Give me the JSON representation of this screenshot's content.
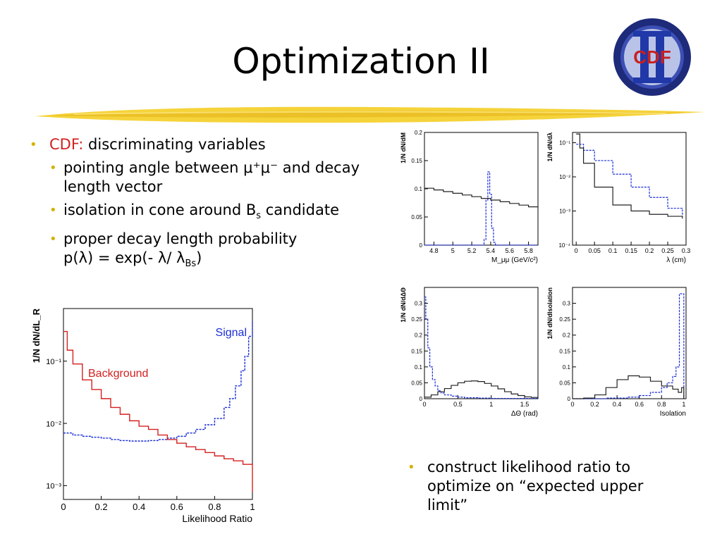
{
  "slide": {
    "title": "Optimization II",
    "logo_text": "CDF",
    "bullet1_prefix": "CDF:",
    "bullet1_text": "discriminating variables",
    "sub1_a": "pointing angle between",
    "sub1_b": "μ⁺μ⁻",
    "sub1_c": "and decay length vector",
    "sub2_a": "isolation in cone around B",
    "sub2_sub": "s",
    "sub2_b": "candidate",
    "sub3_a": "proper decay length probability",
    "sub3_b": "p(λ) = exp(- λ/ λ",
    "sub3_sub": "Bs",
    "sub3_c": ")",
    "bullet2_text": "construct likelihood ratio to optimize on “expected upper limit”"
  },
  "colors": {
    "signal": "#1A2ED8",
    "background": "#D42020",
    "background_panels": "#222222",
    "bullet": "#D4B200",
    "highlight": "#D42020"
  },
  "chart_data": [
    {
      "id": "mass",
      "type": "line",
      "ylabel": "1/N dN/dM",
      "xlabel": "M_μμ  (GeV/c²)",
      "xlim": [
        4.7,
        5.9
      ],
      "ylim": [
        0,
        0.2
      ],
      "ylog": false,
      "xticks": [
        4.8,
        5,
        5.2,
        5.4,
        5.6,
        5.8
      ],
      "xticklabels": [
        "4.8",
        "5",
        "5.2",
        "5.4",
        "5.6",
        "5.8"
      ],
      "yticks": [
        0,
        0.05,
        0.1,
        0.15,
        0.2
      ],
      "yticklabels": [
        "0",
        "0.05",
        "0.1",
        "0.15",
        "0.2"
      ],
      "series": [
        {
          "role": "signal",
          "x": [
            4.7,
            5.3,
            5.33,
            5.35,
            5.37,
            5.39,
            5.41,
            5.43,
            5.45,
            5.9
          ],
          "y": [
            0,
            0,
            0.01,
            0.08,
            0.13,
            0.09,
            0.03,
            0.005,
            0,
            0
          ]
        },
        {
          "role": "background",
          "x": [
            4.7,
            4.8,
            4.9,
            5.0,
            5.1,
            5.2,
            5.3,
            5.4,
            5.5,
            5.6,
            5.7,
            5.8,
            5.9
          ],
          "y": [
            0.101,
            0.098,
            0.095,
            0.092,
            0.089,
            0.086,
            0.083,
            0.08,
            0.077,
            0.074,
            0.071,
            0.068,
            0.065
          ]
        }
      ]
    },
    {
      "id": "lambda",
      "type": "line",
      "ylabel": "1/N dN/dλ",
      "xlabel": "λ (cm)",
      "xlim": [
        -0.01,
        0.3
      ],
      "ylim": [
        0.0001,
        0.2
      ],
      "ylog": true,
      "xticks": [
        0,
        0.05,
        0.1,
        0.15,
        0.2,
        0.25,
        0.3
      ],
      "xticklabels": [
        "0",
        "0.05",
        "0.1",
        "0.15",
        "0.2",
        "0.25",
        "0.3"
      ],
      "yticks": [
        0.0001,
        0.001,
        0.01,
        0.1
      ],
      "yticklabels": [
        "10⁻⁴",
        "10⁻³",
        "10⁻²",
        "10⁻¹"
      ],
      "series": [
        {
          "role": "signal",
          "x": [
            0,
            0.02,
            0.05,
            0.1,
            0.15,
            0.2,
            0.25,
            0.29
          ],
          "y": [
            0.09,
            0.06,
            0.03,
            0.012,
            0.005,
            0.0025,
            0.0012,
            0.0007
          ]
        },
        {
          "role": "background",
          "x": [
            0,
            0.01,
            0.02,
            0.05,
            0.1,
            0.15,
            0.2,
            0.25,
            0.29
          ],
          "y": [
            0.18,
            0.07,
            0.025,
            0.005,
            0.0015,
            0.001,
            0.0008,
            0.0007,
            0.0006
          ]
        }
      ]
    },
    {
      "id": "angle",
      "type": "line",
      "ylabel": "1/N dN/dΔΘ",
      "xlabel": "ΔΘ  (rad)",
      "xlim": [
        0,
        1.7
      ],
      "ylim": [
        0,
        0.35
      ],
      "ylog": false,
      "xticks": [
        0,
        0.5,
        1,
        1.5
      ],
      "xticklabels": [
        "0",
        "0.5",
        "1",
        "1.5"
      ],
      "yticks": [
        0,
        0.05,
        0.1,
        0.15,
        0.2,
        0.25,
        0.3
      ],
      "yticklabels": [
        "0",
        "0.05",
        "0.1",
        "0.15",
        "0.2",
        "0.25",
        "0.3"
      ],
      "series": [
        {
          "role": "signal",
          "x": [
            0,
            0.02,
            0.05,
            0.08,
            0.12,
            0.16,
            0.2,
            0.25,
            0.3,
            0.4,
            0.5,
            0.6,
            0.8,
            1.0,
            1.7
          ],
          "y": [
            0.32,
            0.25,
            0.16,
            0.1,
            0.06,
            0.04,
            0.025,
            0.018,
            0.012,
            0.008,
            0.005,
            0.003,
            0.002,
            0.001,
            0
          ]
        },
        {
          "role": "background",
          "x": [
            0,
            0.1,
            0.2,
            0.3,
            0.4,
            0.5,
            0.6,
            0.7,
            0.8,
            0.9,
            1.0,
            1.1,
            1.2,
            1.3,
            1.4,
            1.5,
            1.6,
            1.7
          ],
          "y": [
            0.005,
            0.012,
            0.022,
            0.032,
            0.042,
            0.05,
            0.055,
            0.056,
            0.054,
            0.048,
            0.04,
            0.031,
            0.022,
            0.015,
            0.01,
            0.006,
            0.004,
            0.002
          ]
        }
      ]
    },
    {
      "id": "isolation",
      "type": "line",
      "ylabel": "1/N dN/dIsolation",
      "xlabel": "Isolation",
      "xlim": [
        0,
        1.02
      ],
      "ylim": [
        0,
        0.35
      ],
      "ylog": false,
      "xticks": [
        0,
        0.2,
        0.4,
        0.6,
        0.8,
        1
      ],
      "xticklabels": [
        "0",
        "0.2",
        "0.4",
        "0.6",
        "0.8",
        "1"
      ],
      "yticks": [
        0,
        0.05,
        0.1,
        0.15,
        0.2,
        0.25,
        0.3
      ],
      "yticklabels": [
        "0",
        "0.05",
        "0.1",
        "0.15",
        "0.2",
        "0.25",
        "0.3"
      ],
      "series": [
        {
          "role": "signal",
          "x": [
            0,
            0.3,
            0.5,
            0.6,
            0.7,
            0.8,
            0.85,
            0.9,
            0.93,
            0.96,
            0.98,
            1.0
          ],
          "y": [
            0,
            0.002,
            0.005,
            0.01,
            0.02,
            0.035,
            0.05,
            0.07,
            0.1,
            0.33,
            0.33,
            0
          ]
        },
        {
          "role": "background",
          "x": [
            0,
            0.1,
            0.2,
            0.3,
            0.4,
            0.5,
            0.6,
            0.7,
            0.8,
            0.9,
            0.95,
            0.98,
            1.0
          ],
          "y": [
            0,
            0.002,
            0.012,
            0.035,
            0.06,
            0.072,
            0.068,
            0.055,
            0.04,
            0.03,
            0.02,
            0.035,
            0
          ]
        }
      ]
    },
    {
      "id": "likelihood",
      "type": "line",
      "ylabel": "1/N dN/dL_R",
      "xlabel": "Likelihood Ratio",
      "xlim": [
        0,
        1
      ],
      "ylim": [
        0.0006,
        0.7
      ],
      "ylog": true,
      "xticks": [
        0,
        0.2,
        0.4,
        0.6,
        0.8,
        1
      ],
      "xticklabels": [
        "0",
        "0.2",
        "0.4",
        "0.6",
        "0.8",
        "1"
      ],
      "yticks": [
        0.001,
        0.01,
        0.1
      ],
      "yticklabels": [
        "10⁻³",
        "10⁻²",
        "10⁻¹"
      ],
      "legend": [
        "Signal",
        "Background"
      ],
      "series": [
        {
          "role": "signal",
          "name": "Signal",
          "x": [
            0,
            0.05,
            0.1,
            0.15,
            0.2,
            0.25,
            0.3,
            0.35,
            0.4,
            0.45,
            0.5,
            0.55,
            0.6,
            0.65,
            0.7,
            0.75,
            0.8,
            0.85,
            0.88,
            0.91,
            0.94,
            0.96,
            0.98,
            1.0
          ],
          "y": [
            0.007,
            0.0065,
            0.0062,
            0.006,
            0.0058,
            0.0055,
            0.0053,
            0.0052,
            0.0052,
            0.0053,
            0.0055,
            0.0058,
            0.0062,
            0.007,
            0.008,
            0.0095,
            0.012,
            0.018,
            0.025,
            0.04,
            0.07,
            0.12,
            0.25,
            0.45
          ]
        },
        {
          "role": "background",
          "name": "Background",
          "x": [
            0,
            0.02,
            0.05,
            0.1,
            0.15,
            0.2,
            0.25,
            0.3,
            0.35,
            0.4,
            0.45,
            0.5,
            0.55,
            0.6,
            0.65,
            0.7,
            0.75,
            0.8,
            0.85,
            0.9,
            0.95,
            1.0
          ],
          "y": [
            0.3,
            0.15,
            0.09,
            0.05,
            0.035,
            0.025,
            0.018,
            0.014,
            0.011,
            0.009,
            0.008,
            0.0065,
            0.0055,
            0.0048,
            0.0042,
            0.0038,
            0.0034,
            0.003,
            0.0027,
            0.0025,
            0.0022,
            0.0008
          ]
        }
      ],
      "annotations": [
        {
          "text": "Signal",
          "role": "signal"
        },
        {
          "text": "Background",
          "role": "background"
        }
      ]
    }
  ]
}
